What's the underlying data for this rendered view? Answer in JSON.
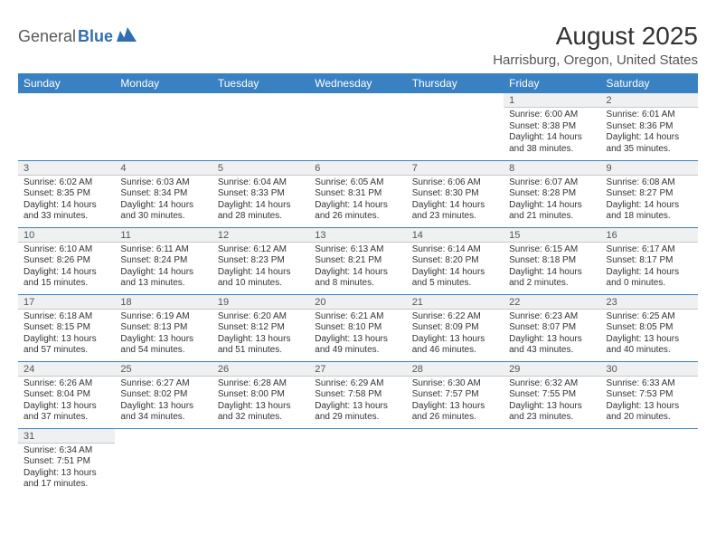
{
  "logo": {
    "text1": "General",
    "text2": "Blue"
  },
  "title": "August 2025",
  "location": "Harrisburg, Oregon, United States",
  "colors": {
    "header_bg": "#3a81c4",
    "header_text": "#ffffff",
    "daynum_bg": "#eef0f1",
    "row_border": "#3a81c4",
    "logo_accent": "#2f6fb0"
  },
  "weekdays": [
    "Sunday",
    "Monday",
    "Tuesday",
    "Wednesday",
    "Thursday",
    "Friday",
    "Saturday"
  ],
  "weeks": [
    [
      null,
      null,
      null,
      null,
      null,
      {
        "n": "1",
        "sunrise": "6:00 AM",
        "sunset": "8:38 PM",
        "daylight": "14 hours and 38 minutes."
      },
      {
        "n": "2",
        "sunrise": "6:01 AM",
        "sunset": "8:36 PM",
        "daylight": "14 hours and 35 minutes."
      }
    ],
    [
      {
        "n": "3",
        "sunrise": "6:02 AM",
        "sunset": "8:35 PM",
        "daylight": "14 hours and 33 minutes."
      },
      {
        "n": "4",
        "sunrise": "6:03 AM",
        "sunset": "8:34 PM",
        "daylight": "14 hours and 30 minutes."
      },
      {
        "n": "5",
        "sunrise": "6:04 AM",
        "sunset": "8:33 PM",
        "daylight": "14 hours and 28 minutes."
      },
      {
        "n": "6",
        "sunrise": "6:05 AM",
        "sunset": "8:31 PM",
        "daylight": "14 hours and 26 minutes."
      },
      {
        "n": "7",
        "sunrise": "6:06 AM",
        "sunset": "8:30 PM",
        "daylight": "14 hours and 23 minutes."
      },
      {
        "n": "8",
        "sunrise": "6:07 AM",
        "sunset": "8:28 PM",
        "daylight": "14 hours and 21 minutes."
      },
      {
        "n": "9",
        "sunrise": "6:08 AM",
        "sunset": "8:27 PM",
        "daylight": "14 hours and 18 minutes."
      }
    ],
    [
      {
        "n": "10",
        "sunrise": "6:10 AM",
        "sunset": "8:26 PM",
        "daylight": "14 hours and 15 minutes."
      },
      {
        "n": "11",
        "sunrise": "6:11 AM",
        "sunset": "8:24 PM",
        "daylight": "14 hours and 13 minutes."
      },
      {
        "n": "12",
        "sunrise": "6:12 AM",
        "sunset": "8:23 PM",
        "daylight": "14 hours and 10 minutes."
      },
      {
        "n": "13",
        "sunrise": "6:13 AM",
        "sunset": "8:21 PM",
        "daylight": "14 hours and 8 minutes."
      },
      {
        "n": "14",
        "sunrise": "6:14 AM",
        "sunset": "8:20 PM",
        "daylight": "14 hours and 5 minutes."
      },
      {
        "n": "15",
        "sunrise": "6:15 AM",
        "sunset": "8:18 PM",
        "daylight": "14 hours and 2 minutes."
      },
      {
        "n": "16",
        "sunrise": "6:17 AM",
        "sunset": "8:17 PM",
        "daylight": "14 hours and 0 minutes."
      }
    ],
    [
      {
        "n": "17",
        "sunrise": "6:18 AM",
        "sunset": "8:15 PM",
        "daylight": "13 hours and 57 minutes."
      },
      {
        "n": "18",
        "sunrise": "6:19 AM",
        "sunset": "8:13 PM",
        "daylight": "13 hours and 54 minutes."
      },
      {
        "n": "19",
        "sunrise": "6:20 AM",
        "sunset": "8:12 PM",
        "daylight": "13 hours and 51 minutes."
      },
      {
        "n": "20",
        "sunrise": "6:21 AM",
        "sunset": "8:10 PM",
        "daylight": "13 hours and 49 minutes."
      },
      {
        "n": "21",
        "sunrise": "6:22 AM",
        "sunset": "8:09 PM",
        "daylight": "13 hours and 46 minutes."
      },
      {
        "n": "22",
        "sunrise": "6:23 AM",
        "sunset": "8:07 PM",
        "daylight": "13 hours and 43 minutes."
      },
      {
        "n": "23",
        "sunrise": "6:25 AM",
        "sunset": "8:05 PM",
        "daylight": "13 hours and 40 minutes."
      }
    ],
    [
      {
        "n": "24",
        "sunrise": "6:26 AM",
        "sunset": "8:04 PM",
        "daylight": "13 hours and 37 minutes."
      },
      {
        "n": "25",
        "sunrise": "6:27 AM",
        "sunset": "8:02 PM",
        "daylight": "13 hours and 34 minutes."
      },
      {
        "n": "26",
        "sunrise": "6:28 AM",
        "sunset": "8:00 PM",
        "daylight": "13 hours and 32 minutes."
      },
      {
        "n": "27",
        "sunrise": "6:29 AM",
        "sunset": "7:58 PM",
        "daylight": "13 hours and 29 minutes."
      },
      {
        "n": "28",
        "sunrise": "6:30 AM",
        "sunset": "7:57 PM",
        "daylight": "13 hours and 26 minutes."
      },
      {
        "n": "29",
        "sunrise": "6:32 AM",
        "sunset": "7:55 PM",
        "daylight": "13 hours and 23 minutes."
      },
      {
        "n": "30",
        "sunrise": "6:33 AM",
        "sunset": "7:53 PM",
        "daylight": "13 hours and 20 minutes."
      }
    ],
    [
      {
        "n": "31",
        "sunrise": "6:34 AM",
        "sunset": "7:51 PM",
        "daylight": "13 hours and 17 minutes."
      },
      null,
      null,
      null,
      null,
      null,
      null
    ]
  ],
  "labels": {
    "sunrise": "Sunrise: ",
    "sunset": "Sunset: ",
    "daylight": "Daylight: "
  }
}
